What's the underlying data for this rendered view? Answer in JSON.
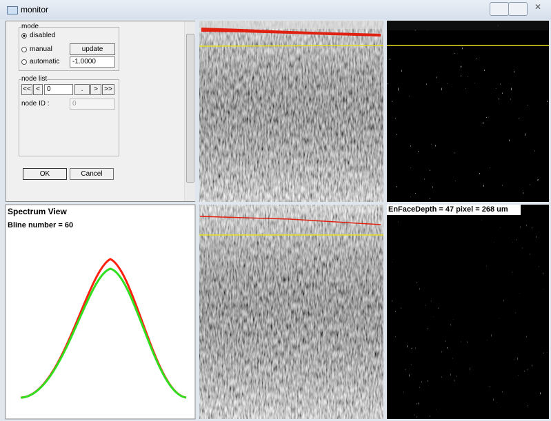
{
  "window": {
    "title": "monitor"
  },
  "controls": {
    "mode": {
      "label": "mode",
      "options": [
        "disabled",
        "manual",
        "automatic"
      ],
      "update_button": "update",
      "value": "-1.0000"
    },
    "node_list": {
      "label": "node list",
      "buttons_left": [
        "<<",
        "<"
      ],
      "index": "0",
      "buttons_right": [
        ".",
        ">",
        ">>"
      ],
      "node_id_label": "node ID :",
      "node_id_value": "0"
    },
    "dialog_buttons": [
      "OK",
      "Cancel"
    ]
  },
  "spectrum": {
    "title": "Spectrum View",
    "subtitle": "Bline number = 60"
  },
  "enface": {
    "label": "EnFaceDepth = 47 pixel = 268 um"
  }
}
